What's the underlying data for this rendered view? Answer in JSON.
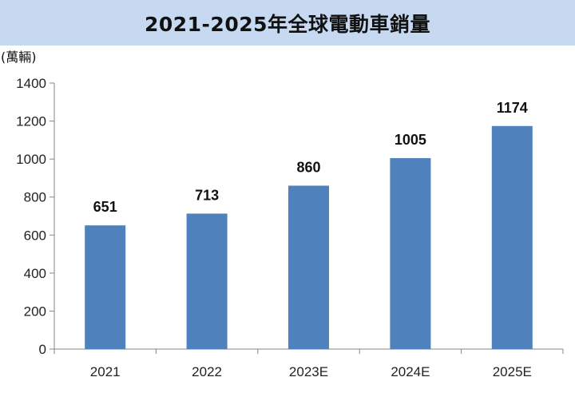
{
  "chart_data": {
    "type": "bar",
    "title": "2021-2025年全球電動車銷量",
    "unit": "(萬輛)",
    "categories": [
      "2021",
      "2022",
      "2023E",
      "2024E",
      "2025E"
    ],
    "values": [
      651,
      713,
      860,
      1005,
      1174
    ],
    "data_labels": [
      "651",
      "713",
      "860",
      "1005",
      "1174"
    ],
    "ylim": [
      0,
      1400
    ],
    "yticks": [
      "0",
      "200",
      "400",
      "600",
      "800",
      "1000",
      "1200",
      "1400"
    ],
    "grid": false,
    "legend": "none",
    "bar_color": "#4f81bd",
    "title_bg_color": "#c6d9f1"
  }
}
